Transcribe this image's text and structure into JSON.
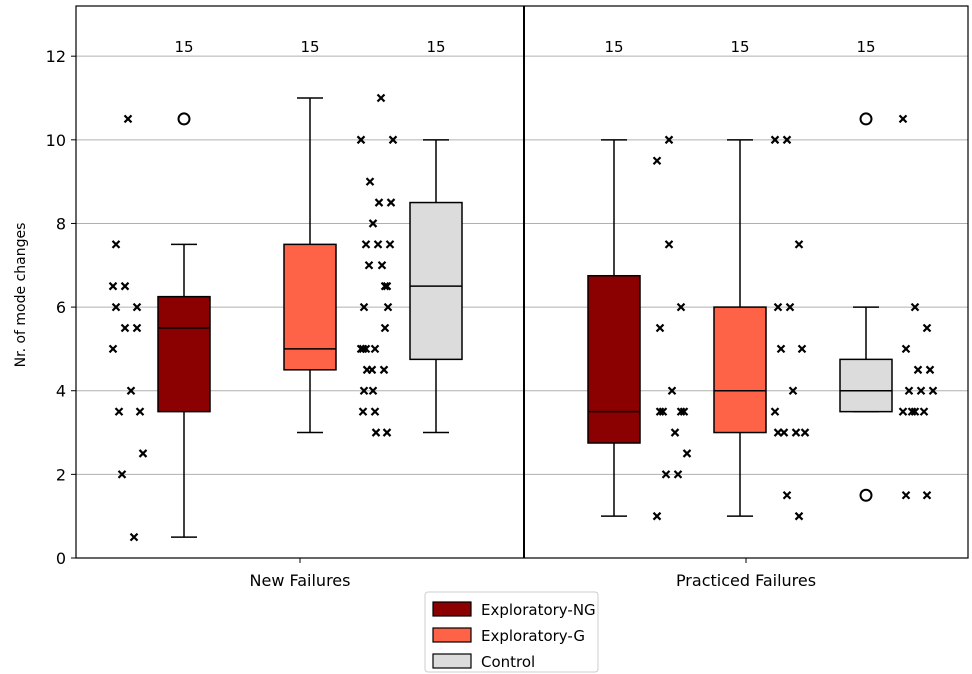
{
  "chart_data": {
    "type": "box",
    "ylabel": "Nr. of mode changes",
    "xlabel": "",
    "ylim": [
      0,
      13.2
    ],
    "yticks": [
      0,
      2,
      4,
      6,
      8,
      10,
      12
    ],
    "grid": "horizontal",
    "categories": [
      "New Failures",
      "Practiced  Failures"
    ],
    "legend": {
      "placement": "bottom-center",
      "entries": [
        "Exploratory-NG",
        "Exploratory-G",
        "Control"
      ]
    },
    "series_colors": [
      "#8B0000",
      "#FF6347",
      "#DCDCDC"
    ],
    "groups": [
      {
        "category": "New Failures",
        "boxes": [
          {
            "series": "Exploratory-NG",
            "n_label": "15",
            "whisker_low": 0.5,
            "q1": 3.5,
            "median": 5.5,
            "q3": 6.25,
            "whisker_high": 7.5,
            "outliers": [
              10.5
            ],
            "points": [
              5,
              5.5,
              5.5,
              7.5,
              10.5,
              3.5,
              3.5,
              4,
              2.5,
              2,
              0.5,
              6.5,
              6.5,
              6,
              6
            ]
          },
          {
            "series": "Exploratory-G",
            "n_label": "15",
            "whisker_low": 3,
            "q1": 4.5,
            "median": 5,
            "q3": 7.5,
            "whisker_high": 11,
            "outliers": [],
            "points": [
              5,
              5,
              6.5,
              7.5,
              7.5,
              7.5,
              7,
              11,
              10,
              4.5,
              4.5,
              3.5,
              3.5,
              3,
              5
            ]
          },
          {
            "series": "Control",
            "n_label": "15",
            "whisker_low": 3,
            "q1": 4.75,
            "median": 6.5,
            "q3": 8.5,
            "whisker_high": 10,
            "outliers": [],
            "points": [
              10,
              8,
              6.5,
              4,
              3,
              6,
              4.5,
              8.5,
              8.5,
              9,
              7,
              5,
              4,
              5.5,
              6
            ]
          }
        ]
      },
      {
        "category": "Practiced  Failures",
        "boxes": [
          {
            "series": "Exploratory-NG",
            "n_label": "15",
            "whisker_low": 1,
            "q1": 2.75,
            "median": 3.5,
            "q3": 6.75,
            "whisker_high": 10,
            "outliers": [],
            "points": [
              9.5,
              7.5,
              6,
              5.5,
              4,
              3.5,
              3.5,
              3,
              2.5,
              2,
              2,
              1,
              10,
              3.5,
              3.5
            ]
          },
          {
            "series": "Exploratory-G",
            "n_label": "15",
            "whisker_low": 1,
            "q1": 3,
            "median": 4,
            "q3": 6,
            "whisker_high": 10,
            "outliers": [],
            "points": [
              10,
              10,
              7.5,
              6,
              6,
              5,
              5,
              4,
              3,
              3,
              3,
              3.5,
              1.5,
              1,
              3
            ]
          },
          {
            "series": "Control",
            "n_label": "15",
            "whisker_low": 3.5,
            "q1": 3.5,
            "median": 4,
            "q3": 4.75,
            "whisker_high": 6,
            "outliers": [
              10.5,
              1.5
            ],
            "points": [
              10.5,
              6,
              5.5,
              5,
              4.5,
              4.5,
              4,
              4,
              4,
              3.5,
              3.5,
              3.5,
              3.5,
              1.5,
              1.5
            ]
          }
        ]
      }
    ]
  }
}
